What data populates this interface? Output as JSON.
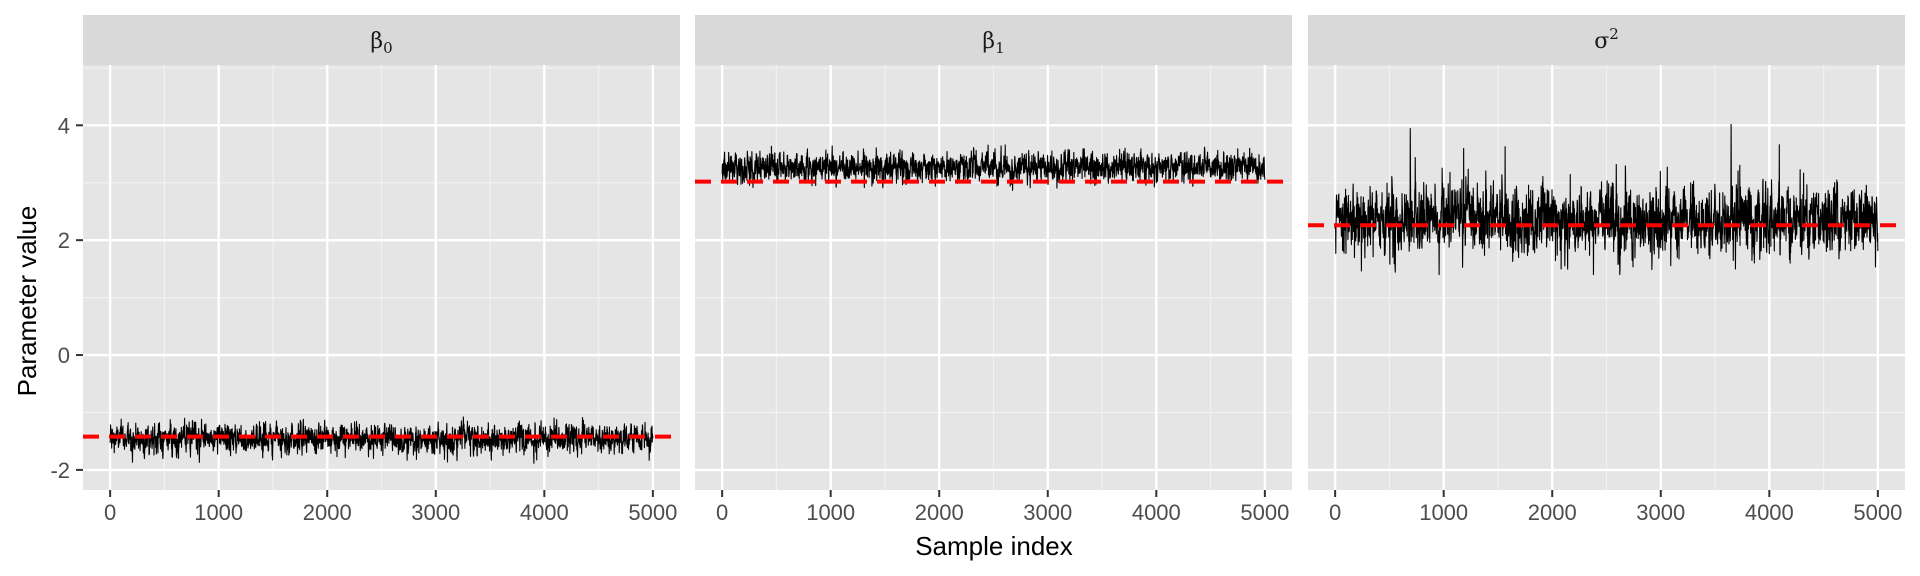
{
  "chart_data": {
    "type": "line",
    "xlabel": "Sample index",
    "ylabel": "Parameter value",
    "xlim": [
      -250,
      5250
    ],
    "ylim": [
      -2.35,
      5.05
    ],
    "x_ticks": [
      0,
      1000,
      2000,
      3000,
      4000,
      5000
    ],
    "x_tick_labels": [
      "0",
      "1000",
      "2000",
      "3000",
      "4000",
      "5000"
    ],
    "y_ticks": [
      -2,
      0,
      2,
      4
    ],
    "y_tick_labels": [
      "-2",
      "0",
      "2",
      "4"
    ],
    "grid": true,
    "n_samples": 5000,
    "panels": [
      {
        "strip_symbol": "β",
        "strip_sub": "0",
        "strip_sup": "",
        "true_value": -1.42,
        "trace_mean": -1.45,
        "trace_spread": 0.12,
        "trace_min": -2.08,
        "trace_max": -0.92
      },
      {
        "strip_symbol": "β",
        "strip_sub": "1",
        "strip_sup": "",
        "true_value": 3.02,
        "trace_mean": 3.27,
        "trace_spread": 0.12,
        "trace_min": 2.75,
        "trace_max": 3.85
      },
      {
        "strip_symbol": "σ",
        "strip_sub": "",
        "strip_sup": "2",
        "true_value": 2.26,
        "trace_mean": 2.35,
        "trace_spread": 0.28,
        "trace_min": 1.4,
        "trace_max": 4.02
      }
    ],
    "trace_color": "#000000",
    "reference_line_color": "#ff0000",
    "panel_background": "#e5e5e5",
    "strip_background": "#d9d9d9"
  }
}
